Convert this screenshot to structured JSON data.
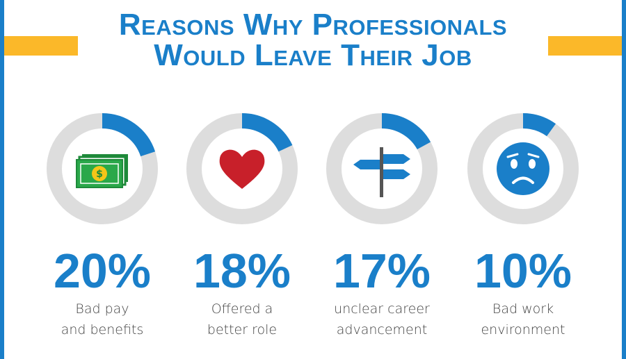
{
  "chart_data": {
    "type": "donut",
    "title": "Reasons Why Professionals Would Leave Their Job",
    "categories": [
      "Bad pay\nand benefits",
      "Offered a\nbetter role",
      "unclear career\nadvancement",
      "Bad work\nenvironment"
    ],
    "values": [
      20,
      18,
      17,
      10
    ],
    "value_labels": [
      "20%",
      "18%",
      "17%",
      "10%"
    ],
    "color": "#1a7fc9",
    "track_color": "#dddddd"
  }
}
